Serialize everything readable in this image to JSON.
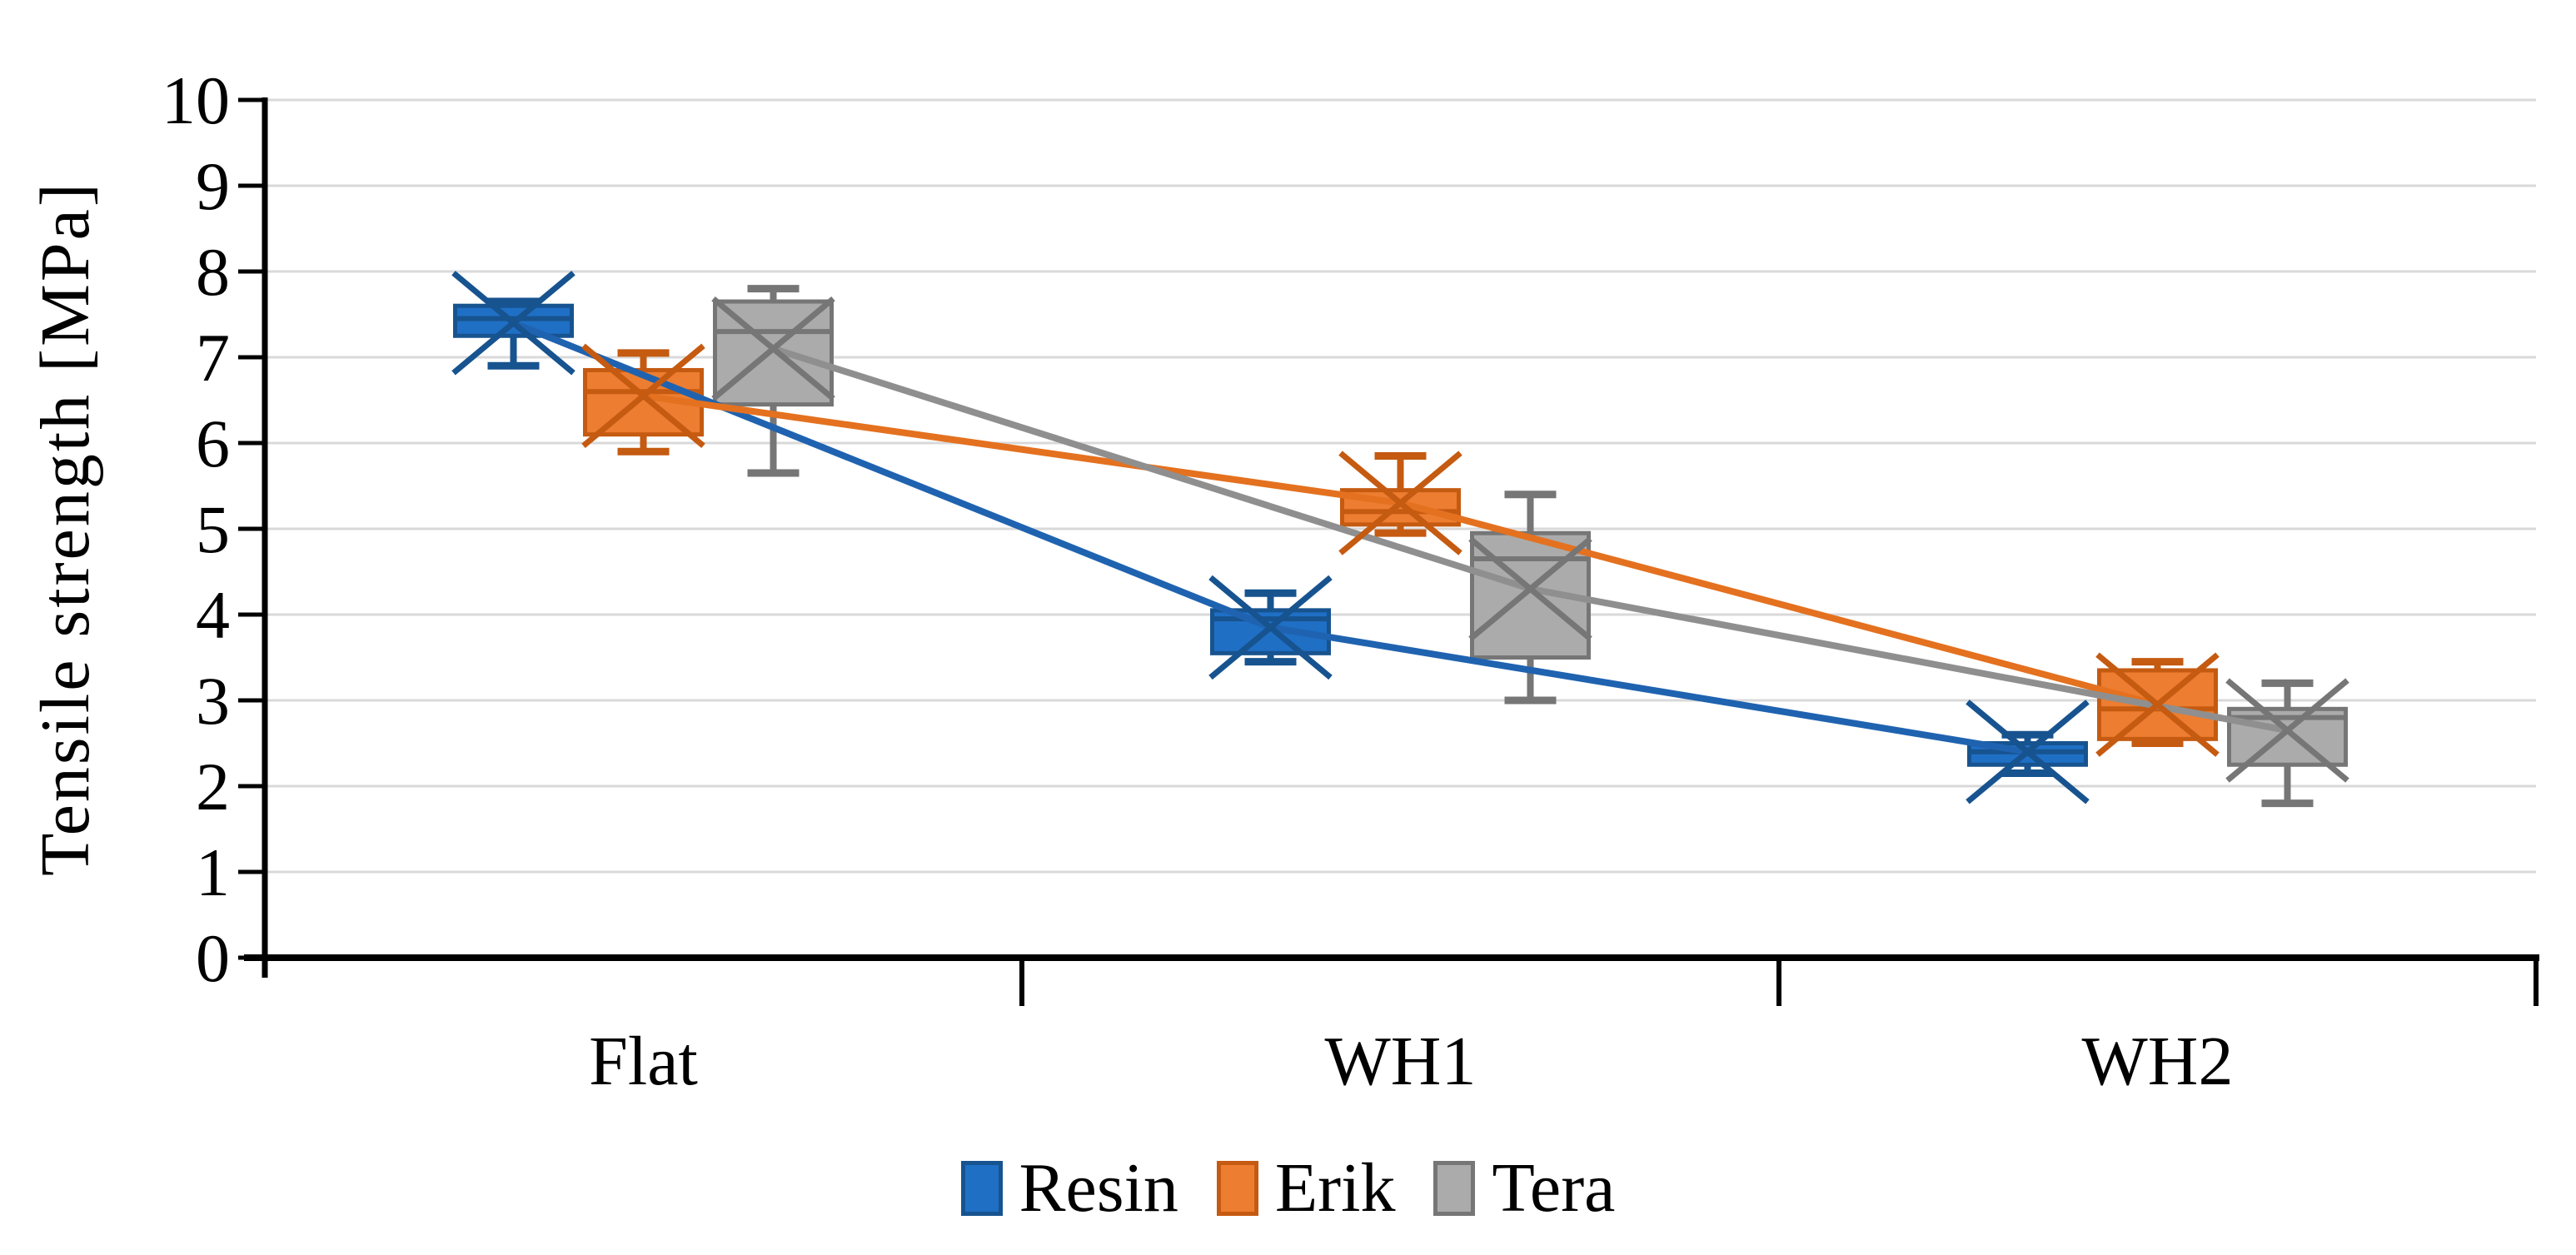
{
  "figure": {
    "background": "#FFFFFF"
  },
  "chart_data": {
    "type": "boxplot",
    "title": "",
    "xlabel": "",
    "ylabel": "Tensile strength [MPa]",
    "ylim": [
      0,
      10
    ],
    "yticks": [
      0,
      1,
      2,
      3,
      4,
      5,
      6,
      7,
      8,
      9,
      10
    ],
    "categories": [
      "Flat",
      "WH1",
      "WH2"
    ],
    "grid": true,
    "gridline_color": "#D9D9D9",
    "axis_color": "#000000",
    "legend_position": "bottom",
    "marker_note": "x marker = mean, line connects means across categories",
    "series": [
      {
        "name": "Resin",
        "fill": "#1F6FC5",
        "stroke": "#17538F",
        "line_color": "#1F63B0",
        "boxes": [
          {
            "category": "Flat",
            "min": 6.9,
            "q1": 7.25,
            "median": 7.45,
            "q3": 7.6,
            "max": 7.65,
            "mean": 7.4
          },
          {
            "category": "WH1",
            "min": 3.45,
            "q1": 3.55,
            "median": 3.95,
            "q3": 4.05,
            "max": 4.25,
            "mean": 3.85
          },
          {
            "category": "WH2",
            "min": 2.15,
            "q1": 2.25,
            "median": 2.4,
            "q3": 2.5,
            "max": 2.6,
            "mean": 2.4
          }
        ]
      },
      {
        "name": "Erik",
        "fill": "#ED7D31",
        "stroke": "#C55A11",
        "line_color": "#E4711F",
        "boxes": [
          {
            "category": "Flat",
            "min": 5.9,
            "q1": 6.1,
            "median": 6.6,
            "q3": 6.85,
            "max": 7.05,
            "mean": 6.55
          },
          {
            "category": "WH1",
            "min": 4.95,
            "q1": 5.05,
            "median": 5.2,
            "q3": 5.45,
            "max": 5.85,
            "mean": 5.3
          },
          {
            "category": "WH2",
            "min": 2.5,
            "q1": 2.55,
            "median": 2.9,
            "q3": 3.35,
            "max": 3.45,
            "mean": 2.95
          }
        ]
      },
      {
        "name": "Tera",
        "fill": "#ABABAB",
        "stroke": "#767676",
        "line_color": "#8F8F8F",
        "boxes": [
          {
            "category": "Flat",
            "min": 5.65,
            "q1": 6.45,
            "median": 7.3,
            "q3": 7.65,
            "max": 7.8,
            "mean": 7.1
          },
          {
            "category": "WH1",
            "min": 3.0,
            "q1": 3.5,
            "median": 4.65,
            "q3": 4.95,
            "max": 5.4,
            "mean": 4.3
          },
          {
            "category": "WH2",
            "min": 1.8,
            "q1": 2.25,
            "median": 2.8,
            "q3": 2.9,
            "max": 3.2,
            "mean": 2.65
          }
        ]
      }
    ]
  }
}
